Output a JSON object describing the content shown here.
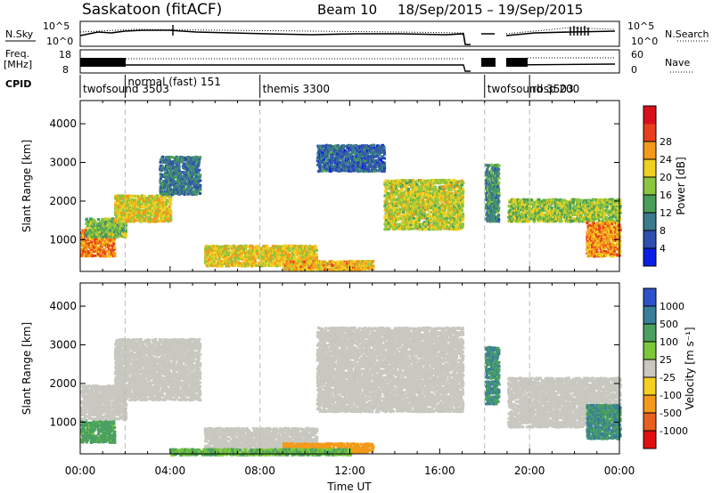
{
  "header": {
    "station": "Saskatoon (fitACF)",
    "beam": "Beam 10",
    "dates": "18/Sep/2015 – 19/Sep/2015"
  },
  "summary": {
    "nsky_label": "N.Sky",
    "nsky_ticks": [
      "10^5",
      "10^0"
    ],
    "nsearch_label": "N.Search",
    "nsearch_ticks": [
      "10^5",
      "10^0"
    ],
    "freq_label_1": "Freq.",
    "freq_label_2": "[MHz]",
    "freq_ticks": [
      "18",
      "8"
    ],
    "nave_label": "Nave",
    "nave_ticks": [
      "60",
      "0"
    ],
    "cpid_label": "CPID"
  },
  "cpid_modes": [
    {
      "name": "twofsound 3503",
      "start": 0.0,
      "end": 2.0
    },
    {
      "name": "normal (fast) 151",
      "start": 2.0,
      "end": 8.0
    },
    {
      "name": "themis 3300",
      "start": 8.0,
      "end": 18.0
    },
    {
      "name": "twofsound 3503",
      "start": 18.0,
      "end": 20.0
    },
    {
      "name": "rbsp 200",
      "start": 20.0,
      "end": 24.0
    }
  ],
  "chart_data": [
    {
      "type": "heatmap",
      "panel": "power",
      "xlabel": "Time UT",
      "ylabel": "Slant Range [km]",
      "xlim": [
        0,
        24
      ],
      "ylim": [
        180,
        4600
      ],
      "yticks": [
        1000,
        2000,
        3000,
        4000
      ],
      "colorbar": {
        "label": "Power [dB]",
        "ticks": [
          "4",
          "8",
          "12",
          "16",
          "20",
          "24",
          "28"
        ],
        "colors": [
          "#0a1ee6",
          "#2e4fb0",
          "#3b7a8c",
          "#4a9e5a",
          "#8cc63e",
          "#f0d020",
          "#f39a1b",
          "#e8401c",
          "#d8101c"
        ]
      },
      "echo_bands": [
        {
          "t0": 0.0,
          "t1": 1.5,
          "r0": 600,
          "r1": 1300,
          "level": 27
        },
        {
          "t0": 0.2,
          "t1": 2.0,
          "r0": 1100,
          "r1": 1600,
          "level": 16
        },
        {
          "t0": 1.5,
          "t1": 4.0,
          "r0": 1500,
          "r1": 2200,
          "level": 22
        },
        {
          "t0": 3.5,
          "t1": 5.3,
          "r0": 2200,
          "r1": 3200,
          "level": 10
        },
        {
          "t0": 5.5,
          "t1": 10.5,
          "r0": 350,
          "r1": 900,
          "level": 22
        },
        {
          "t0": 9.0,
          "t1": 13.0,
          "r0": 250,
          "r1": 500,
          "level": 24
        },
        {
          "t0": 10.5,
          "t1": 13.5,
          "r0": 2800,
          "r1": 3500,
          "level": 8
        },
        {
          "t0": 13.5,
          "t1": 17.0,
          "r0": 1300,
          "r1": 2600,
          "level": 20
        },
        {
          "t0": 18.0,
          "t1": 18.6,
          "r0": 1500,
          "r1": 3000,
          "level": 12
        },
        {
          "t0": 19.0,
          "t1": 24.0,
          "r0": 1500,
          "r1": 2100,
          "level": 18
        },
        {
          "t0": 22.5,
          "t1": 24.0,
          "r0": 600,
          "r1": 1500,
          "level": 26
        }
      ]
    },
    {
      "type": "heatmap",
      "panel": "velocity",
      "xlabel": "Time UT",
      "ylabel": "Slant Range [km]",
      "xlim": [
        0,
        24
      ],
      "ylim": [
        180,
        4600
      ],
      "yticks": [
        1000,
        2000,
        3000,
        4000
      ],
      "xticks": [
        "00:00",
        "04:00",
        "08:00",
        "12:00",
        "16:00",
        "20:00",
        "00:00"
      ],
      "colorbar": {
        "label": "Velocity [m s⁻¹]",
        "ticks": [
          "1000",
          "500",
          "100",
          "25",
          "-25",
          "-100",
          "-500",
          "-1000"
        ],
        "colors": [
          "#2d52c8",
          "#3a7f9a",
          "#4aa060",
          "#7cc83a",
          "#c8c8c0",
          "#f5d020",
          "#f39a1b",
          "#e86020",
          "#e01010"
        ]
      },
      "echo_bands": [
        {
          "t0": 0.0,
          "t1": 1.5,
          "r0": 500,
          "r1": 1100,
          "level": 100
        },
        {
          "t0": 0.0,
          "t1": 2.0,
          "r0": 1100,
          "r1": 2000,
          "level": 0
        },
        {
          "t0": 1.5,
          "t1": 5.3,
          "r0": 1600,
          "r1": 3200,
          "level": 0
        },
        {
          "t0": 5.5,
          "t1": 10.5,
          "r0": 300,
          "r1": 900,
          "level": 0
        },
        {
          "t0": 9.0,
          "t1": 13.0,
          "r0": 250,
          "r1": 500,
          "level": -200
        },
        {
          "t0": 4.0,
          "t1": 12.0,
          "r0": 180,
          "r1": 350,
          "level": 60
        },
        {
          "t0": 10.5,
          "t1": 17.0,
          "r0": 1300,
          "r1": 3500,
          "level": 0
        },
        {
          "t0": 18.0,
          "t1": 18.6,
          "r0": 1500,
          "r1": 3000,
          "level": 300
        },
        {
          "t0": 19.0,
          "t1": 24.0,
          "r0": 900,
          "r1": 2200,
          "level": 0
        },
        {
          "t0": 22.5,
          "t1": 24.0,
          "r0": 600,
          "r1": 1500,
          "level": 300
        }
      ]
    }
  ]
}
